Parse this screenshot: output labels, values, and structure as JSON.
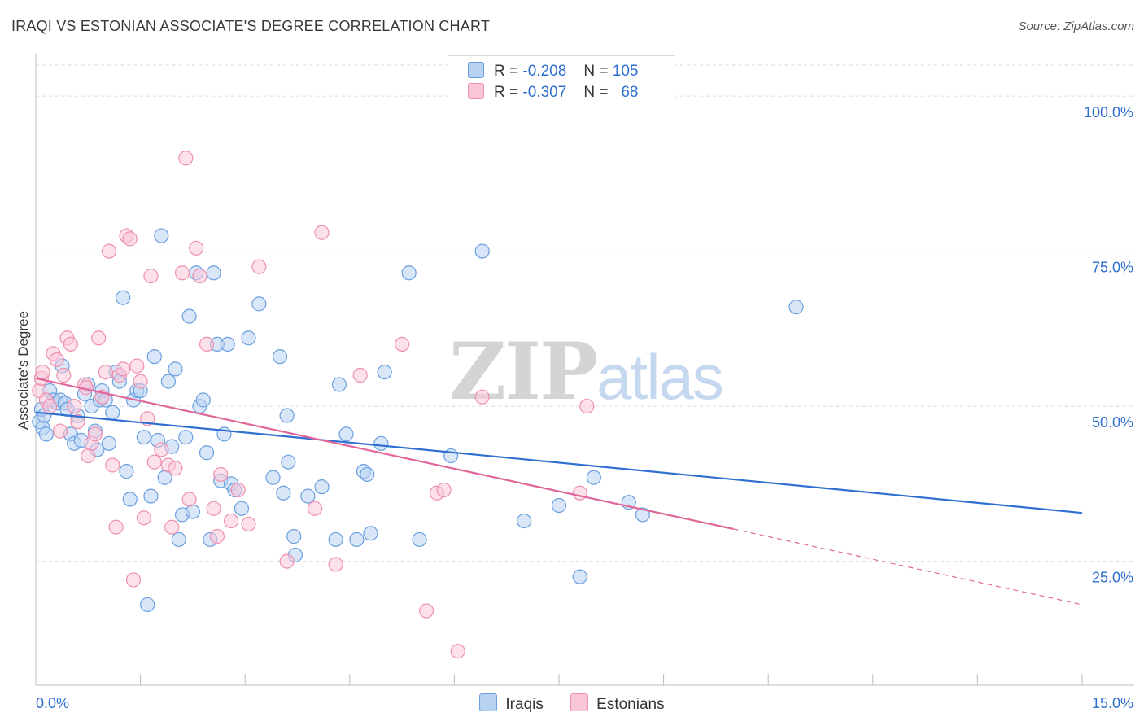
{
  "title": "IRAQI VS ESTONIAN ASSOCIATE'S DEGREE CORRELATION CHART",
  "source": "Source: ZipAtlas.com",
  "watermark": {
    "zip": "ZIP",
    "atlas": "atlas"
  },
  "legend_top": [
    {
      "r_label": "R =",
      "r_value": "-0.208",
      "n_label": "N =",
      "n_value": "105"
    },
    {
      "r_label": "R =",
      "r_value": "-0.307",
      "n_label": "N =",
      "n_value": "68"
    }
  ],
  "legend_bottom": [
    "Iraqis",
    "Estonians"
  ],
  "chart_data": {
    "type": "scatter",
    "title": "IRAQI VS ESTONIAN ASSOCIATE'S DEGREE CORRELATION CHART",
    "xlabel": "",
    "ylabel": "Associate's Degree",
    "xlim": [
      0,
      15
    ],
    "ylim": [
      5,
      105
    ],
    "x_tick_labels": [
      "0.0%",
      "15.0%"
    ],
    "y_ticks": [
      25,
      50,
      75,
      100
    ],
    "y_tick_labels": [
      "25.0%",
      "50.0%",
      "75.0%",
      "100.0%"
    ],
    "grid": true,
    "legend_position": "top-center",
    "colors": {
      "iraqis": "#6a9fe0",
      "iraqis_fill": "#b8d2f3",
      "iraqis_line": "#2f6fd0",
      "estonians": "#ee90b0",
      "estonians_fill": "#f9c6d8",
      "estonians_line": "#e0669a",
      "axis_labels": "#2f6fd0"
    },
    "series": [
      {
        "name": "Iraqis",
        "trend": {
          "x": [
            0,
            15
          ],
          "y": [
            49.0,
            32.8
          ]
        },
        "points": [
          [
            0.05,
            47.5
          ],
          [
            0.08,
            49.5
          ],
          [
            0.1,
            46.5
          ],
          [
            0.12,
            48.5
          ],
          [
            0.15,
            45.5
          ],
          [
            0.2,
            52.5
          ],
          [
            0.25,
            51
          ],
          [
            0.3,
            50.5
          ],
          [
            0.35,
            51
          ],
          [
            0.38,
            56.5
          ],
          [
            0.42,
            50.5
          ],
          [
            0.45,
            49.5
          ],
          [
            0.5,
            45.5
          ],
          [
            0.55,
            44
          ],
          [
            0.6,
            48.5
          ],
          [
            0.65,
            44.5
          ],
          [
            0.7,
            52
          ],
          [
            0.75,
            53.5
          ],
          [
            0.8,
            50
          ],
          [
            0.85,
            46
          ],
          [
            0.88,
            43
          ],
          [
            0.92,
            51
          ],
          [
            0.95,
            52.5
          ],
          [
            1.0,
            51
          ],
          [
            1.05,
            44
          ],
          [
            1.1,
            49
          ],
          [
            1.15,
            55.5
          ],
          [
            1.2,
            54
          ],
          [
            1.25,
            67.5
          ],
          [
            1.3,
            39.5
          ],
          [
            1.35,
            35
          ],
          [
            1.4,
            51
          ],
          [
            1.45,
            52.5
          ],
          [
            1.5,
            52.5
          ],
          [
            1.55,
            45
          ],
          [
            1.6,
            18
          ],
          [
            1.65,
            35.5
          ],
          [
            1.7,
            58
          ],
          [
            1.75,
            44.5
          ],
          [
            1.8,
            77.5
          ],
          [
            1.85,
            38.5
          ],
          [
            1.9,
            54
          ],
          [
            1.95,
            43.5
          ],
          [
            2.0,
            56
          ],
          [
            2.05,
            28.5
          ],
          [
            2.1,
            32.5
          ],
          [
            2.15,
            45
          ],
          [
            2.2,
            64.5
          ],
          [
            2.25,
            33
          ],
          [
            2.3,
            71.5
          ],
          [
            2.35,
            50
          ],
          [
            2.4,
            51
          ],
          [
            2.45,
            42.5
          ],
          [
            2.5,
            28.5
          ],
          [
            2.55,
            71.5
          ],
          [
            2.6,
            60
          ],
          [
            2.65,
            38
          ],
          [
            2.7,
            45.5
          ],
          [
            2.75,
            60
          ],
          [
            2.8,
            37.5
          ],
          [
            2.85,
            36.5
          ],
          [
            2.95,
            33.5
          ],
          [
            3.05,
            61
          ],
          [
            3.2,
            66.5
          ],
          [
            3.4,
            38.5
          ],
          [
            3.5,
            58
          ],
          [
            3.55,
            36
          ],
          [
            3.6,
            48.5
          ],
          [
            3.62,
            41
          ],
          [
            3.7,
            29
          ],
          [
            3.72,
            26
          ],
          [
            3.9,
            35.5
          ],
          [
            4.1,
            37
          ],
          [
            4.3,
            28.5
          ],
          [
            4.35,
            53.5
          ],
          [
            4.45,
            45.5
          ],
          [
            4.6,
            28.5
          ],
          [
            4.7,
            39.5
          ],
          [
            4.75,
            39
          ],
          [
            4.8,
            29.5
          ],
          [
            4.95,
            44
          ],
          [
            5.0,
            55.5
          ],
          [
            5.35,
            71.5
          ],
          [
            5.5,
            28.5
          ],
          [
            5.95,
            42
          ],
          [
            6.4,
            75
          ],
          [
            7.0,
            31.5
          ],
          [
            7.5,
            34
          ],
          [
            7.8,
            22.5
          ],
          [
            8.0,
            38.5
          ],
          [
            8.5,
            34.5
          ],
          [
            8.7,
            32.5
          ],
          [
            10.9,
            66
          ]
        ]
      },
      {
        "name": "Estonians",
        "trend": {
          "x": [
            0,
            10
          ],
          "y": [
            54.5,
            30.2
          ]
        },
        "trend_dashed": {
          "x": [
            10,
            15
          ],
          "y": [
            30.2,
            18
          ]
        },
        "points": [
          [
            0.05,
            52.5
          ],
          [
            0.08,
            54.5
          ],
          [
            0.1,
            55.5
          ],
          [
            0.15,
            51
          ],
          [
            0.2,
            50
          ],
          [
            0.25,
            58.5
          ],
          [
            0.3,
            57.5
          ],
          [
            0.35,
            46
          ],
          [
            0.4,
            55
          ],
          [
            0.45,
            61
          ],
          [
            0.5,
            60
          ],
          [
            0.55,
            50
          ],
          [
            0.6,
            47.5
          ],
          [
            0.7,
            53.5
          ],
          [
            0.72,
            53
          ],
          [
            0.75,
            42
          ],
          [
            0.8,
            44
          ],
          [
            0.85,
            45.5
          ],
          [
            0.9,
            61
          ],
          [
            0.95,
            51.5
          ],
          [
            1.0,
            55.5
          ],
          [
            1.05,
            75
          ],
          [
            1.1,
            40.5
          ],
          [
            1.15,
            30.5
          ],
          [
            1.2,
            55
          ],
          [
            1.25,
            56
          ],
          [
            1.3,
            77.5
          ],
          [
            1.35,
            77
          ],
          [
            1.4,
            22
          ],
          [
            1.45,
            56.5
          ],
          [
            1.5,
            54
          ],
          [
            1.55,
            32
          ],
          [
            1.6,
            48
          ],
          [
            1.65,
            71
          ],
          [
            1.7,
            41
          ],
          [
            1.8,
            43
          ],
          [
            1.9,
            40.5
          ],
          [
            1.95,
            30.5
          ],
          [
            2.0,
            40
          ],
          [
            2.1,
            71.5
          ],
          [
            2.15,
            90
          ],
          [
            2.2,
            35
          ],
          [
            2.3,
            75.5
          ],
          [
            2.35,
            71
          ],
          [
            2.45,
            60
          ],
          [
            2.55,
            33.5
          ],
          [
            2.6,
            29
          ],
          [
            2.65,
            39
          ],
          [
            2.8,
            31.5
          ],
          [
            2.9,
            36.5
          ],
          [
            3.05,
            31
          ],
          [
            3.2,
            72.5
          ],
          [
            3.6,
            25
          ],
          [
            4.0,
            33.5
          ],
          [
            4.1,
            78
          ],
          [
            4.3,
            24.5
          ],
          [
            4.65,
            55
          ],
          [
            5.25,
            60
          ],
          [
            5.6,
            17
          ],
          [
            5.75,
            36
          ],
          [
            5.85,
            36.5
          ],
          [
            6.05,
            10.5
          ],
          [
            6.4,
            51.5
          ],
          [
            7.8,
            36
          ],
          [
            7.9,
            50
          ]
        ]
      }
    ]
  }
}
